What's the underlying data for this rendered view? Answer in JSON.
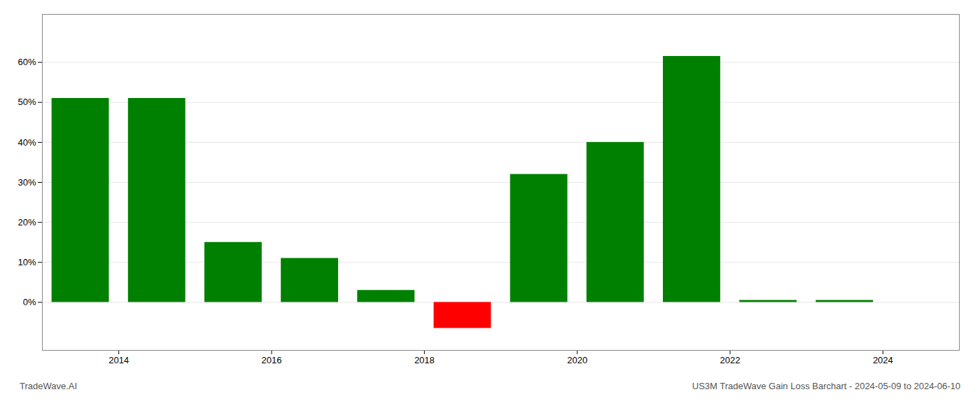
{
  "chart_data": {
    "type": "bar",
    "title": "US3M TradeWave Gain Loss Barchart - 2024-05-09 to 2024-06-10",
    "annotations": [
      "TradeWave.AI"
    ],
    "x": [
      2013,
      2014,
      2015,
      2016,
      2017,
      2018,
      2019,
      2020,
      2021,
      2022,
      2023
    ],
    "values": [
      0.51,
      0.51,
      0.15,
      0.11,
      0.03,
      -0.065,
      0.32,
      0.4,
      0.615,
      0.005,
      0.005
    ],
    "colors": [
      "#008000",
      "#008000",
      "#008000",
      "#008000",
      "#008000",
      "#ff0000",
      "#008000",
      "#008000",
      "#008000",
      "#008000",
      "#008000"
    ],
    "xlim": [
      2012.5,
      2024.5
    ],
    "xticks": [
      {
        "value": 2013.5,
        "label": "2014"
      },
      {
        "value": 2015.5,
        "label": "2016"
      },
      {
        "value": 2017.5,
        "label": "2018"
      },
      {
        "value": 2019.5,
        "label": "2020"
      },
      {
        "value": 2021.5,
        "label": "2022"
      },
      {
        "value": 2023.5,
        "label": "2024"
      }
    ],
    "ylim": [
      -0.12,
      0.72
    ],
    "yticks": [
      {
        "value": 0,
        "label": "0%"
      },
      {
        "value": 0.1,
        "label": "10%"
      },
      {
        "value": 0.2,
        "label": "20%"
      },
      {
        "value": 0.3,
        "label": "30%"
      },
      {
        "value": 0.4,
        "label": "40%"
      },
      {
        "value": 0.5,
        "label": "50%"
      },
      {
        "value": 0.6,
        "label": "60%"
      }
    ],
    "grid": true
  }
}
